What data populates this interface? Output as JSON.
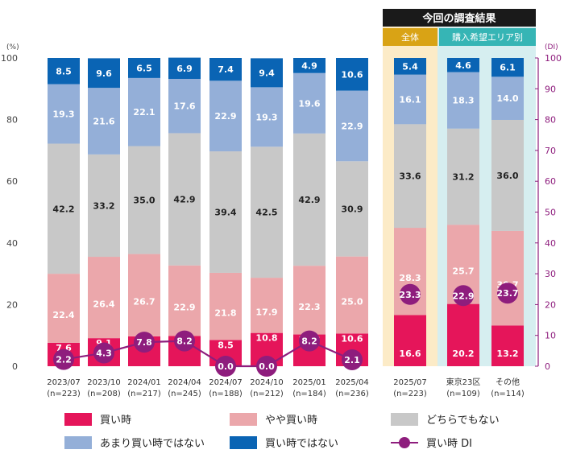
{
  "chart_data": {
    "type": "bar",
    "stacked": true,
    "ylim": [
      0,
      100
    ],
    "y2lim": [
      0,
      100
    ],
    "yticks": [
      0,
      20,
      40,
      60,
      80,
      100
    ],
    "y2ticks": [
      0,
      10,
      20,
      30,
      40,
      50,
      60,
      70,
      80,
      90,
      100
    ],
    "ylabel": "(%)",
    "y2label": "(DI)",
    "categories": [
      {
        "label": "2023/07",
        "n": "(n=223)"
      },
      {
        "label": "2023/10",
        "n": "(n=208)"
      },
      {
        "label": "2024/01",
        "n": "(n=217)"
      },
      {
        "label": "2024/04",
        "n": "(n=245)"
      },
      {
        "label": "2024/07",
        "n": "(n=188)"
      },
      {
        "label": "2024/10",
        "n": "(n=212)"
      },
      {
        "label": "2025/01",
        "n": "(n=184)"
      },
      {
        "label": "2025/04",
        "n": "(n=236)"
      },
      {
        "label": "2025/07",
        "n": "(n=223)"
      },
      {
        "label": "東京23区",
        "n": "(n=109)"
      },
      {
        "label": "その他",
        "n": "(n=114)"
      }
    ],
    "series": [
      {
        "name": "買い時",
        "color": "#e5155a",
        "values": [
          7.6,
          9.1,
          9.7,
          9.8,
          8.5,
          10.8,
          10.3,
          10.6,
          16.6,
          20.2,
          13.2
        ]
      },
      {
        "name": "やや買い時",
        "color": "#eba7ab",
        "values": [
          22.4,
          26.4,
          26.7,
          22.9,
          21.8,
          17.9,
          22.3,
          25.0,
          28.3,
          25.7,
          30.7
        ]
      },
      {
        "name": "どちらでもない",
        "color": "#c8c8c8",
        "values": [
          42.2,
          33.2,
          35.0,
          42.9,
          39.4,
          42.5,
          42.9,
          30.9,
          33.6,
          31.2,
          36.0
        ]
      },
      {
        "name": "あまり買い時ではない",
        "color": "#94afd8",
        "values": [
          19.3,
          21.6,
          22.1,
          17.6,
          22.9,
          19.3,
          19.6,
          22.9,
          16.1,
          18.3,
          14.0
        ]
      },
      {
        "name": "買い時ではない",
        "color": "#0a64b4",
        "values": [
          8.5,
          9.6,
          6.5,
          6.9,
          7.4,
          9.4,
          4.9,
          10.6,
          5.4,
          4.6,
          6.1
        ]
      }
    ],
    "line_series": {
      "name": "買い時 DI",
      "color": "#8e1d7d",
      "axis": "right",
      "values": [
        2.2,
        4.3,
        7.8,
        8.2,
        0.0,
        0.0,
        8.2,
        2.1,
        23.3,
        22.9,
        23.7
      ]
    },
    "header": {
      "title": "今回の調査結果",
      "overall": "全体",
      "region": "購入希望エリア別"
    },
    "colors": {
      "header_bg": "#1a1a1a",
      "overall_bg": "#fcebc7",
      "overall_header": "#d9a315",
      "region_bg": "#d6eef0",
      "region_header": "#36b5b5",
      "right_axis": "#8e1d7d"
    }
  }
}
